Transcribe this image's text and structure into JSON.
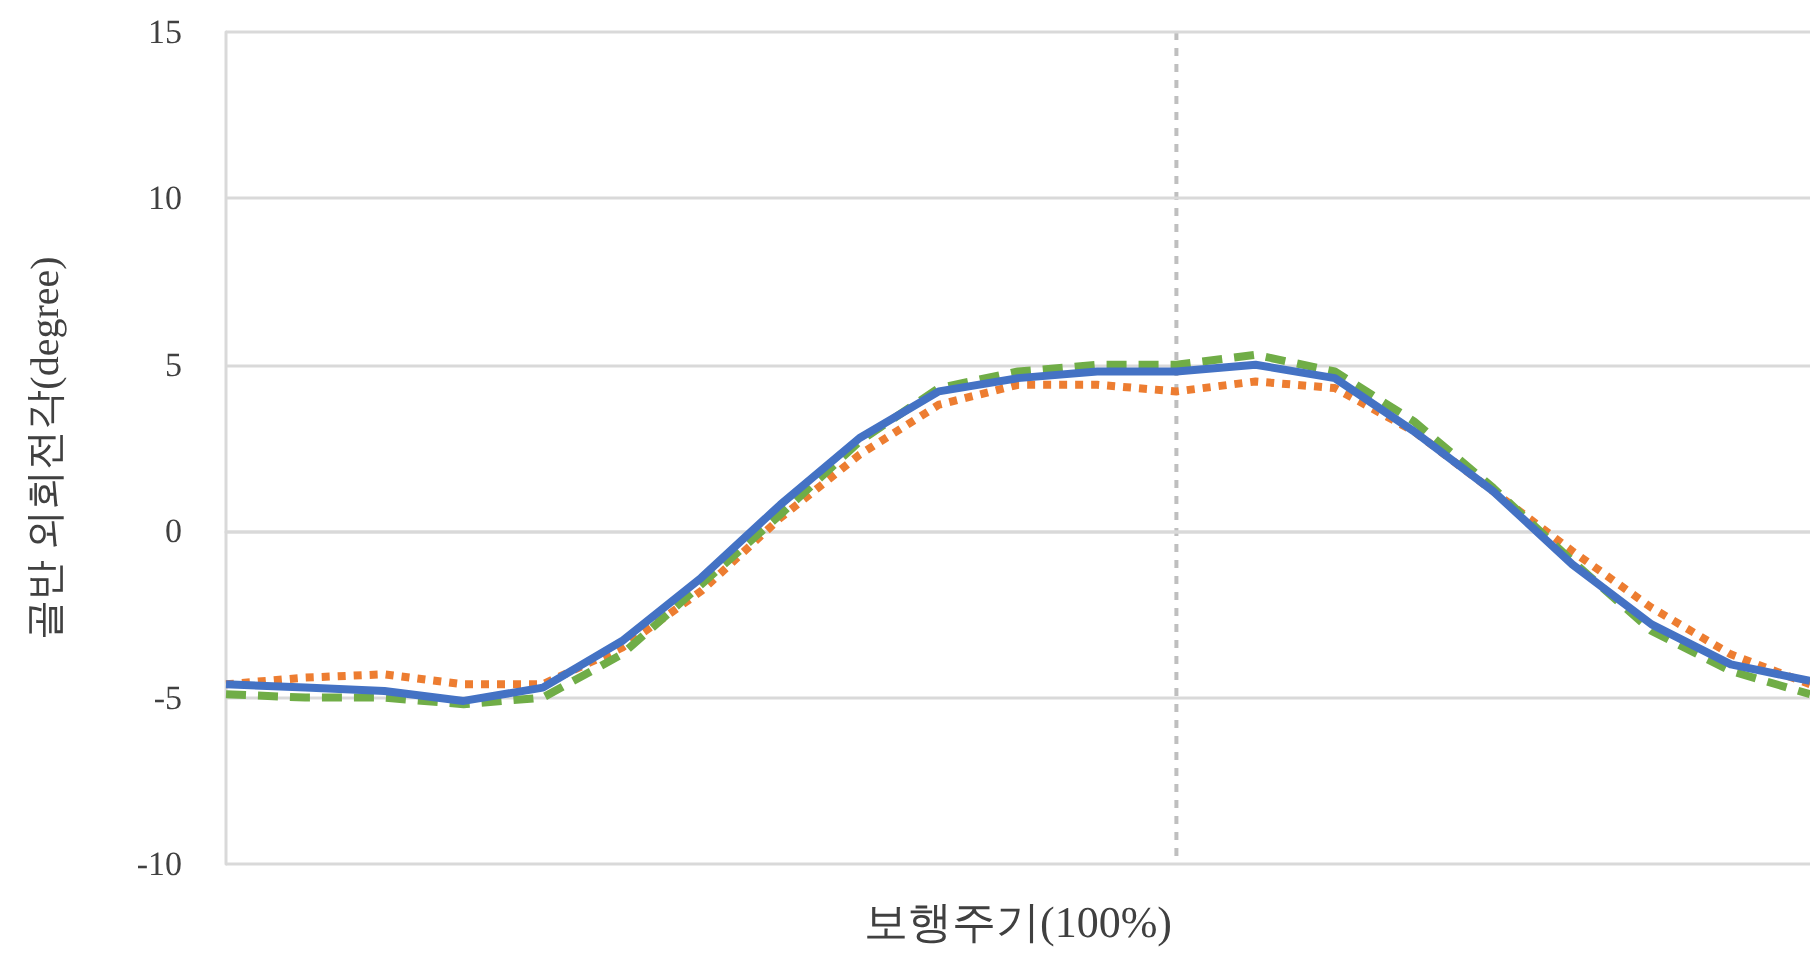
{
  "chart_data": {
    "type": "line",
    "xlabel": "보행주기(100%)",
    "ylabel": "골반 외회전각(degree)",
    "categories": [
      null,
      null,
      null,
      null,
      null,
      null,
      null,
      null,
      null,
      null,
      null,
      null,
      null,
      null,
      null,
      null,
      null,
      null,
      null,
      null,
      null
    ],
    "ylim": [
      -10,
      15
    ],
    "yticks": [
      -10,
      -5,
      0,
      5,
      10,
      15
    ],
    "tick_labels": "y",
    "grid": "y",
    "marker": "none",
    "series": [
      {
        "color": "#ed7d31",
        "line_style": "dotted",
        "values": [
          -4.6,
          -4.4,
          -4.3,
          -4.6,
          -4.6,
          -3.5,
          -1.8,
          0.4,
          2.3,
          3.8,
          4.4,
          4.4,
          4.2,
          4.5,
          4.3,
          3.0,
          1.2,
          -0.6,
          -2.3,
          -3.7,
          -4.6
        ]
      },
      {
        "color": "#70ad47",
        "line_style": "dashed",
        "values": [
          -4.9,
          -5.0,
          -5.0,
          -5.2,
          -5.0,
          -3.7,
          -1.6,
          0.5,
          2.7,
          4.3,
          4.8,
          5.0,
          5.0,
          5.3,
          4.8,
          3.3,
          1.3,
          -0.9,
          -3.0,
          -4.2,
          -4.9
        ]
      },
      {
        "color": "#4472c4",
        "line_style": "solid",
        "values": [
          -4.6,
          -4.7,
          -4.8,
          -5.1,
          -4.7,
          -3.3,
          -1.4,
          0.8,
          2.8,
          4.2,
          4.6,
          4.8,
          4.8,
          5.0,
          4.6,
          3.0,
          1.2,
          -1.0,
          -2.8,
          -4.0,
          -4.5
        ]
      }
    ]
  }
}
